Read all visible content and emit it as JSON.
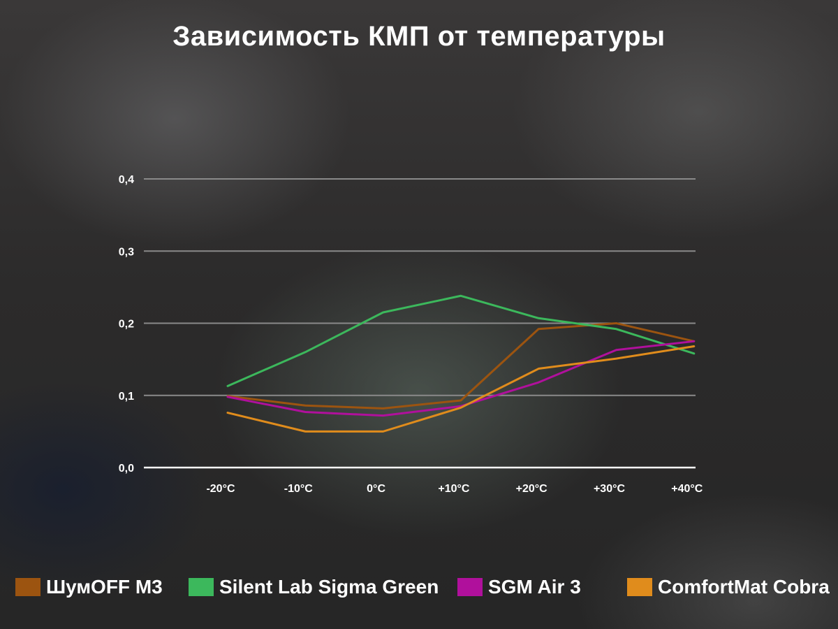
{
  "chart_data": {
    "type": "line",
    "title": "Зависимость КМП от температуры",
    "xlabel": "",
    "ylabel": "",
    "categories": [
      "-20°C",
      "-10°C",
      "0°C",
      "+10°C",
      "+20°C",
      "+30°C",
      "+40°C"
    ],
    "y_ticks": [
      "0,0",
      "0,1",
      "0,2",
      "0,3",
      "0,4"
    ],
    "ylim": [
      0,
      0.4
    ],
    "grid": true,
    "legend_position": "bottom",
    "series": [
      {
        "name": "ШумOFF M3",
        "color": "#9c5410",
        "values": [
          0.099,
          0.086,
          0.082,
          0.093,
          0.192,
          0.2,
          0.175
        ]
      },
      {
        "name": "Silent Lab Sigma Green",
        "color": "#3cb85c",
        "values": [
          0.113,
          0.16,
          0.215,
          0.238,
          0.207,
          0.192,
          0.158
        ]
      },
      {
        "name": "SGM Air 3",
        "color": "#b0109c",
        "values": [
          0.098,
          0.077,
          0.072,
          0.085,
          0.118,
          0.163,
          0.175
        ]
      },
      {
        "name": "ComfortMat Cobra",
        "color": "#e08c1c",
        "values": [
          0.076,
          0.05,
          0.05,
          0.083,
          0.137,
          0.151,
          0.168
        ]
      }
    ]
  }
}
